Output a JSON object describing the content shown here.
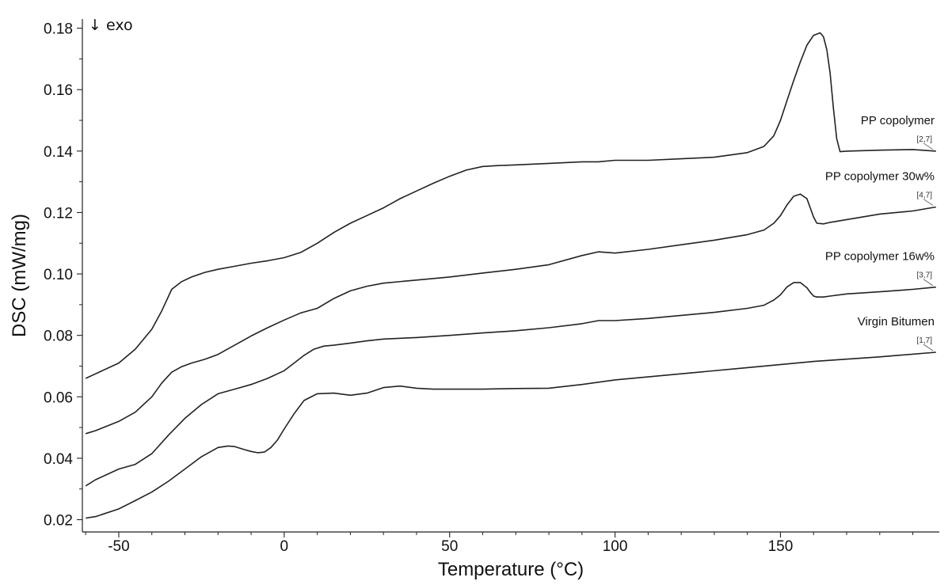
{
  "chart_data": {
    "type": "line",
    "xlabel": "Temperature (°C)",
    "ylabel": "DSC  (mW/mg)",
    "annotation": "↓ exo",
    "xlim": [
      -61,
      198
    ],
    "ylim": [
      0.016,
      0.183
    ],
    "x_ticks": [
      -50,
      0,
      50,
      100,
      150
    ],
    "y_ticks": [
      0.02,
      0.04,
      0.06,
      0.08,
      0.1,
      0.12,
      0.14,
      0.16,
      0.18
    ],
    "x_tick_labels": [
      "-50",
      "0",
      "50",
      "100",
      "150"
    ],
    "y_tick_labels": [
      "0.02",
      "0.04",
      "0.06",
      "0.08",
      "0.10",
      "0.12",
      "0.14",
      "0.16",
      "0.18"
    ],
    "grid": false,
    "line_color": "#222222",
    "series": [
      {
        "name": "PP copolymer",
        "tag": "[2,7]",
        "x": [
          -60,
          -57,
          -50,
          -45,
          -40,
          -37,
          -34,
          -31,
          -28,
          -24,
          -20,
          -15,
          -10,
          -5,
          0,
          5,
          10,
          15,
          20,
          25,
          30,
          35,
          40,
          45,
          50,
          55,
          60,
          65,
          70,
          80,
          90,
          95,
          100,
          110,
          120,
          130,
          140,
          145,
          148,
          150,
          152,
          154,
          156,
          158,
          160,
          162,
          163,
          164,
          165,
          166,
          167,
          168,
          170,
          180,
          190,
          197
        ],
        "values": [
          0.066,
          0.0675,
          0.071,
          0.0755,
          0.082,
          0.088,
          0.095,
          0.0975,
          0.099,
          0.1005,
          0.1015,
          0.1025,
          0.1035,
          0.1043,
          0.1053,
          0.107,
          0.11,
          0.1135,
          0.1165,
          0.119,
          0.1215,
          0.1245,
          0.127,
          0.1295,
          0.1318,
          0.1338,
          0.135,
          0.1353,
          0.1355,
          0.136,
          0.1365,
          0.1365,
          0.137,
          0.137,
          0.1375,
          0.138,
          0.1395,
          0.1415,
          0.145,
          0.15,
          0.1565,
          0.163,
          0.169,
          0.1745,
          0.1777,
          0.1785,
          0.1772,
          0.173,
          0.1655,
          0.154,
          0.144,
          0.1398,
          0.14,
          0.1403,
          0.1405,
          0.14
        ]
      },
      {
        "name": "PP copolymer 30w%",
        "tag": "[4,7]",
        "x": [
          -60,
          -57,
          -50,
          -45,
          -40,
          -37,
          -34,
          -31,
          -28,
          -24,
          -20,
          -15,
          -10,
          -5,
          0,
          5,
          10,
          15,
          20,
          25,
          30,
          40,
          50,
          60,
          70,
          80,
          90,
          95,
          100,
          110,
          120,
          130,
          140,
          145,
          148,
          150,
          152,
          154,
          156,
          158,
          159,
          160,
          161,
          163,
          165,
          170,
          180,
          190,
          197
        ],
        "values": [
          0.048,
          0.049,
          0.052,
          0.055,
          0.06,
          0.0645,
          0.068,
          0.0698,
          0.071,
          0.0722,
          0.0738,
          0.0768,
          0.0798,
          0.0825,
          0.085,
          0.0873,
          0.0888,
          0.092,
          0.0945,
          0.096,
          0.097,
          0.098,
          0.099,
          0.1003,
          0.1015,
          0.103,
          0.106,
          0.1072,
          0.1068,
          0.108,
          0.1095,
          0.111,
          0.1128,
          0.1143,
          0.1165,
          0.119,
          0.1225,
          0.1253,
          0.126,
          0.1245,
          0.1215,
          0.1185,
          0.1165,
          0.1163,
          0.1168,
          0.1177,
          0.1195,
          0.1205,
          0.1218
        ]
      },
      {
        "name": "PP copolymer 16w%",
        "tag": "[3,7]",
        "x": [
          -60,
          -57,
          -50,
          -45,
          -40,
          -35,
          -30,
          -25,
          -20,
          -15,
          -10,
          -5,
          0,
          3,
          6,
          9,
          12,
          15,
          20,
          25,
          30,
          40,
          50,
          60,
          70,
          80,
          90,
          95,
          100,
          110,
          120,
          130,
          140,
          145,
          148,
          150,
          152,
          154,
          156,
          158,
          159,
          160,
          161,
          163,
          165,
          170,
          180,
          190,
          197
        ],
        "values": [
          0.031,
          0.033,
          0.0365,
          0.038,
          0.0415,
          0.0475,
          0.053,
          0.0575,
          0.061,
          0.0625,
          0.064,
          0.066,
          0.0685,
          0.071,
          0.0735,
          0.0755,
          0.0765,
          0.0768,
          0.0775,
          0.0782,
          0.0788,
          0.0793,
          0.08,
          0.0808,
          0.0815,
          0.0825,
          0.0838,
          0.0848,
          0.0848,
          0.0855,
          0.0865,
          0.0875,
          0.0888,
          0.0898,
          0.0915,
          0.0932,
          0.0958,
          0.0972,
          0.0972,
          0.0955,
          0.094,
          0.0928,
          0.0925,
          0.0925,
          0.0928,
          0.0935,
          0.0942,
          0.095,
          0.0957
        ]
      },
      {
        "name": "Virgin Bitumen",
        "tag": "[1,7]",
        "x": [
          -60,
          -57,
          -50,
          -45,
          -40,
          -35,
          -30,
          -25,
          -20,
          -17,
          -15,
          -12,
          -10,
          -8,
          -6,
          -4,
          -2,
          0,
          3,
          6,
          10,
          15,
          20,
          25,
          30,
          35,
          40,
          45,
          50,
          60,
          70,
          80,
          90,
          100,
          120,
          140,
          160,
          180,
          197
        ],
        "values": [
          0.0205,
          0.021,
          0.0235,
          0.0262,
          0.029,
          0.0325,
          0.0365,
          0.0405,
          0.0435,
          0.044,
          0.0438,
          0.0428,
          0.0422,
          0.0418,
          0.042,
          0.0435,
          0.046,
          0.0495,
          0.0545,
          0.0588,
          0.061,
          0.0612,
          0.0605,
          0.0612,
          0.063,
          0.0635,
          0.0628,
          0.0625,
          0.0625,
          0.0625,
          0.0627,
          0.0628,
          0.064,
          0.0655,
          0.0675,
          0.0695,
          0.0715,
          0.073,
          0.0745
        ]
      }
    ]
  }
}
